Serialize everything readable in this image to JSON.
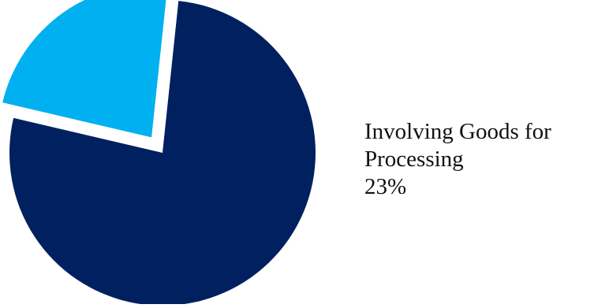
{
  "chart_data": {
    "type": "pie",
    "slices": [
      {
        "label": "",
        "value": 77,
        "color": "#002060"
      },
      {
        "label": "Involving Goods for Processing",
        "value_label": "23%",
        "value": 23,
        "color": "#00b0f0"
      }
    ],
    "title": "",
    "legend": "none"
  },
  "labels": {
    "processing": {
      "line1": "Involving Goods for",
      "line2": "Processing",
      "percent": "23%"
    }
  }
}
